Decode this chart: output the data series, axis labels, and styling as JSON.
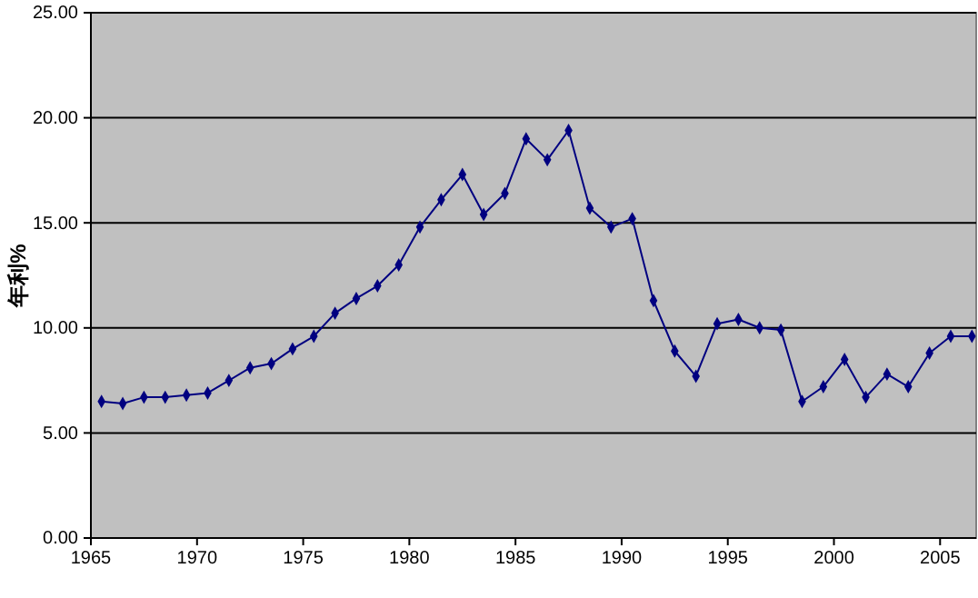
{
  "chart_data": {
    "type": "line",
    "ylabel": "年利%",
    "x": [
      1965.5,
      1966.5,
      1967.5,
      1968.5,
      1969.5,
      1970.5,
      1971.5,
      1972.5,
      1973.5,
      1974.5,
      1975.5,
      1976.5,
      1977.5,
      1978.5,
      1979.5,
      1980.5,
      1981.5,
      1982.5,
      1983.5,
      1984.5,
      1985.5,
      1986.5,
      1987.5,
      1988.5,
      1989.5,
      1990.5,
      1991.5,
      1992.5,
      1993.5,
      1994.5,
      1995.5,
      1996.5,
      1997.5,
      1998.5,
      1999.5,
      2000.5,
      2001.5,
      2002.5,
      2003.5,
      2004.5,
      2005.5,
      2006.5
    ],
    "series": [
      {
        "color": "#000080",
        "values": [
          6.5,
          6.4,
          6.7,
          6.7,
          6.8,
          6.9,
          7.5,
          8.1,
          8.3,
          9.0,
          9.6,
          10.7,
          11.4,
          12.0,
          13.0,
          14.8,
          16.1,
          17.3,
          15.4,
          16.4,
          19.0,
          18.0,
          19.4,
          15.7,
          14.8,
          15.2,
          11.3,
          8.9,
          7.7,
          10.2,
          10.4,
          10.0,
          9.9,
          6.5,
          7.2,
          8.5,
          6.7,
          7.8,
          7.2,
          8.8,
          9.6,
          9.6
        ]
      }
    ],
    "xlim": [
      1965,
      2006.7
    ],
    "xticks": [
      1965,
      1970,
      1975,
      1980,
      1985,
      1990,
      1995,
      2000,
      2005
    ],
    "ylim": [
      0,
      25
    ],
    "yticks": [
      {
        "value": 0,
        "label": "0.00"
      },
      {
        "value": 5,
        "label": "5.00"
      },
      {
        "value": 10,
        "label": "10.00"
      },
      {
        "value": 15,
        "label": "15.00"
      },
      {
        "value": 20,
        "label": "20.00"
      },
      {
        "value": 25,
        "label": "25.00"
      }
    ],
    "grid": "y",
    "marker": "diamond",
    "line_style": "solid"
  }
}
